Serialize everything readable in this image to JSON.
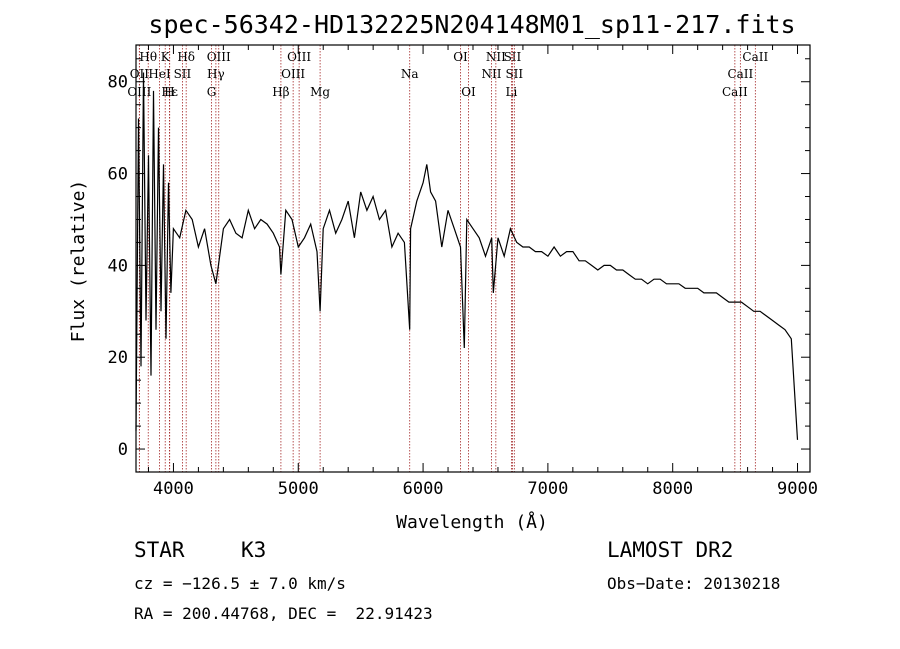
{
  "chart_data": {
    "type": "line",
    "title": "spec-56342-HD132225N204148M01_sp11-217.fits",
    "xlabel": "Wavelength (Å)",
    "ylabel": "Flux (relative)",
    "xlim": [
      3700,
      9100
    ],
    "ylim": [
      -5,
      88
    ],
    "x_ticks": [
      4000,
      5000,
      6000,
      7000,
      8000,
      9000
    ],
    "y_ticks": [
      0,
      20,
      40,
      60,
      80
    ],
    "grid": false,
    "series": [
      {
        "x": [
          3700,
          3720,
          3740,
          3760,
          3780,
          3800,
          3820,
          3840,
          3860,
          3880,
          3900,
          3920,
          3940,
          3960,
          3980,
          4000,
          4050,
          4100,
          4150,
          4200,
          4250,
          4300,
          4340,
          4400,
          4450,
          4500,
          4550,
          4600,
          4650,
          4700,
          4750,
          4800,
          4850,
          4861,
          4900,
          4950,
          5000,
          5050,
          5100,
          5150,
          5175,
          5200,
          5250,
          5300,
          5350,
          5400,
          5450,
          5500,
          5550,
          5600,
          5650,
          5700,
          5750,
          5800,
          5850,
          5893,
          5900,
          5950,
          6000,
          6030,
          6060,
          6100,
          6150,
          6200,
          6250,
          6300,
          6330,
          6350,
          6400,
          6450,
          6500,
          6550,
          6563,
          6600,
          6650,
          6700,
          6750,
          6800,
          6850,
          6900,
          6950,
          7000,
          7050,
          7100,
          7150,
          7200,
          7250,
          7300,
          7350,
          7400,
          7450,
          7500,
          7550,
          7600,
          7650,
          7700,
          7750,
          7800,
          7850,
          7900,
          7950,
          8000,
          8050,
          8100,
          8150,
          8200,
          8250,
          8300,
          8350,
          8400,
          8450,
          8500,
          8550,
          8600,
          8650,
          8700,
          8750,
          8800,
          8850,
          8900,
          8950,
          9000
        ],
        "y": [
          4,
          72,
          18,
          82,
          28,
          64,
          16,
          78,
          26,
          70,
          30,
          62,
          24,
          58,
          34,
          48,
          46,
          52,
          50,
          44,
          48,
          40,
          36,
          48,
          50,
          47,
          46,
          52,
          48,
          50,
          49,
          47,
          44,
          38,
          52,
          50,
          44,
          46,
          49,
          43,
          30,
          48,
          52,
          47,
          50,
          54,
          46,
          56,
          52,
          55,
          50,
          52,
          44,
          47,
          45,
          26,
          48,
          54,
          58,
          62,
          56,
          54,
          44,
          52,
          48,
          44,
          22,
          50,
          48,
          46,
          42,
          46,
          34,
          46,
          42,
          48,
          45,
          44,
          44,
          43,
          43,
          42,
          44,
          42,
          43,
          43,
          41,
          41,
          40,
          39,
          40,
          40,
          39,
          39,
          38,
          37,
          37,
          36,
          37,
          37,
          36,
          36,
          36,
          35,
          35,
          35,
          34,
          34,
          34,
          33,
          32,
          32,
          32,
          31,
          30,
          30,
          29,
          28,
          27,
          26,
          24,
          2
        ]
      }
    ],
    "spectral_lines": [
      {
        "label": "Hθ",
        "x": 3798,
        "row": 1
      },
      {
        "label": "K",
        "x": 3934,
        "row": 1
      },
      {
        "label": "Hδ",
        "x": 4102,
        "row": 1
      },
      {
        "label": "OIII",
        "x": 4363,
        "row": 1
      },
      {
        "label": "OIII",
        "x": 5007,
        "row": 1
      },
      {
        "label": "OI",
        "x": 6300,
        "row": 1
      },
      {
        "label": "NII",
        "x": 6583,
        "row": 1
      },
      {
        "label": "SII",
        "x": 6716,
        "row": 1
      },
      {
        "label": "CaII",
        "x": 8662,
        "row": 1
      },
      {
        "label": "OII",
        "x": 3727,
        "row": 2
      },
      {
        "label": "HeI",
        "x": 3889,
        "row": 2
      },
      {
        "label": "SII",
        "x": 4072,
        "row": 2
      },
      {
        "label": "Hγ",
        "x": 4340,
        "row": 2
      },
      {
        "label": "OIII",
        "x": 4959,
        "row": 2
      },
      {
        "label": "Na",
        "x": 5893,
        "row": 2
      },
      {
        "label": "NII",
        "x": 6548,
        "row": 2
      },
      {
        "label": "SII",
        "x": 6731,
        "row": 2
      },
      {
        "label": "CaII",
        "x": 8542,
        "row": 2
      },
      {
        "label": "OIII",
        "x": 3727,
        "row": 3
      },
      {
        "label": "Hε",
        "x": 3970,
        "row": 3
      },
      {
        "label": "H",
        "x": 3968,
        "row": 3
      },
      {
        "label": "G",
        "x": 4305,
        "row": 3
      },
      {
        "label": "Hβ",
        "x": 4861,
        "row": 3
      },
      {
        "label": "Mg",
        "x": 5175,
        "row": 3
      },
      {
        "label": "OI",
        "x": 6364,
        "row": 3
      },
      {
        "label": "Li",
        "x": 6708,
        "row": 3
      },
      {
        "label": "CaII",
        "x": 8498,
        "row": 3
      }
    ],
    "colors": {
      "spectrum": "#000000",
      "line_markers": "#a52a2a"
    }
  },
  "info": {
    "object_type": "STAR",
    "subclass": "K3",
    "survey": "LAMOST DR2",
    "redshift_text": "cz = −126.5 ± 7.0 km/s",
    "obs_date_text": "Obs−Date: 20130218",
    "coords_text": "RA = 200.44768, DEC =  22.91423"
  }
}
